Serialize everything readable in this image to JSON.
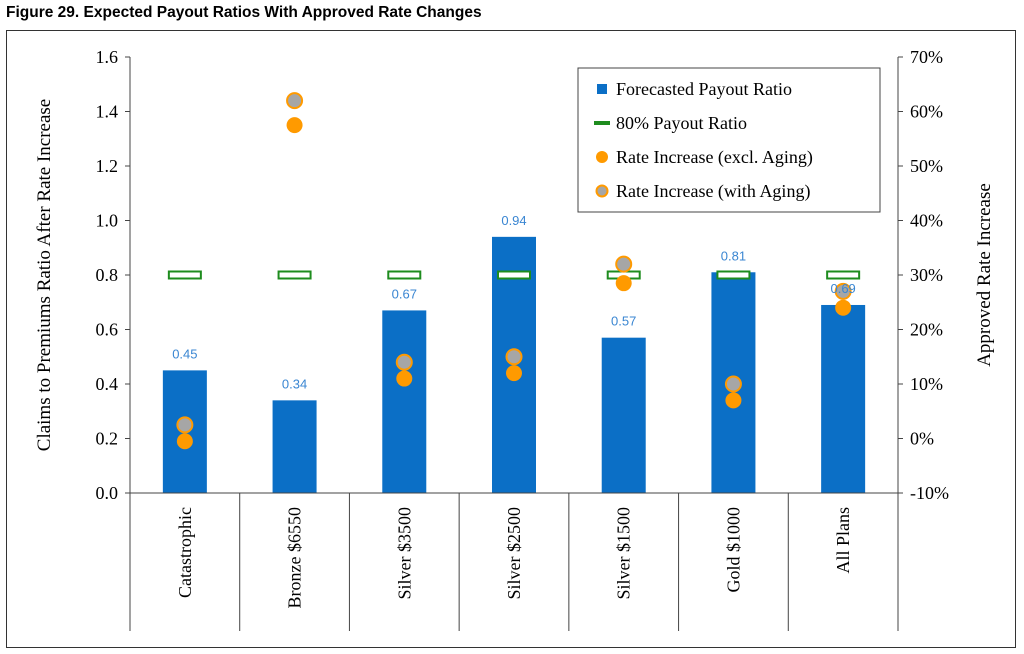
{
  "figure_title": "Figure 29.  Expected Payout Ratios With Approved Rate Changes",
  "colors": {
    "bar": "#0b6fc6",
    "bar_label": "#3a86d2",
    "target": "#1e8c1e",
    "rate_excl": "#ff9a00",
    "rate_with_fill": "#a6a6a6",
    "rate_with_edge": "#ff9a00"
  },
  "chart_data": {
    "type": "bar",
    "categories": [
      "Catastrophic",
      "Bronze $6550",
      "Silver $3500",
      "Silver $2500",
      "Silver $1500",
      "Gold $1000",
      "All Plans"
    ],
    "series": [
      {
        "name": "Forecasted Payout Ratio",
        "type": "bar",
        "axis": "left",
        "values": [
          0.45,
          0.34,
          0.67,
          0.94,
          0.57,
          0.81,
          0.69
        ],
        "labels": [
          "0.45",
          "0.34",
          "0.67",
          "0.94",
          "0.57",
          "0.81",
          "0.69"
        ]
      },
      {
        "name": "80% Payout Ratio",
        "type": "marker",
        "axis": "left",
        "values": [
          0.8,
          0.8,
          0.8,
          0.8,
          0.8,
          0.8,
          0.8
        ]
      },
      {
        "name": "Rate Increase (excl. Aging)",
        "type": "scatter",
        "axis": "right",
        "values": [
          -0.5,
          57.5,
          11,
          12,
          28.5,
          7,
          24
        ]
      },
      {
        "name": "Rate Increase (with Aging)",
        "type": "scatter",
        "axis": "right",
        "values": [
          2.5,
          62,
          14,
          15,
          32,
          10,
          27
        ]
      }
    ],
    "ylabel": "Claims to Premiums Ratio After Rate Increase",
    "y2label": "Approved Rate Increase",
    "ylim": [
      0,
      1.6
    ],
    "yticks": [
      "0.0",
      "0.2",
      "0.4",
      "0.6",
      "0.8",
      "1.0",
      "1.2",
      "1.4",
      "1.6"
    ],
    "y2lim": [
      -10,
      70
    ],
    "y2ticks": [
      "-10%",
      "0%",
      "10%",
      "20%",
      "30%",
      "40%",
      "50%",
      "60%",
      "70%"
    ],
    "legend_position": "top-right",
    "grid": false
  }
}
